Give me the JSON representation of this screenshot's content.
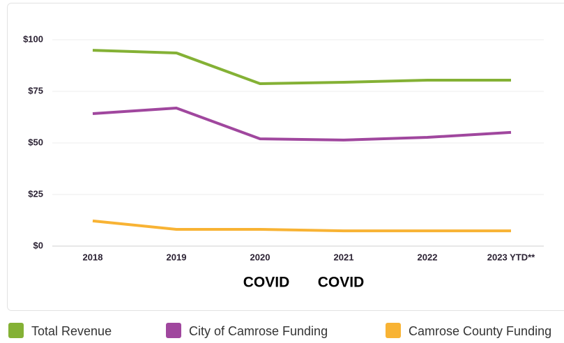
{
  "chart_data": {
    "type": "line",
    "categories": [
      "2018",
      "2019",
      "2020",
      "2021",
      "2022",
      "2023 YTD**"
    ],
    "series": [
      {
        "name": "Total Revenue",
        "color": "#84b135",
        "values": [
          94.9,
          93.6,
          78.7,
          79.4,
          80.4,
          80.4
        ]
      },
      {
        "name": "City of Camrose Funding",
        "color": "#a0479e",
        "values": [
          64.2,
          66.9,
          52.0,
          51.4,
          52.7,
          55.1
        ]
      },
      {
        "name": "Camrose County Funding",
        "color": "#f8b334",
        "values": [
          12.2,
          8.1,
          8.1,
          7.4,
          7.4,
          7.4
        ]
      }
    ],
    "ylim": [
      0,
      100
    ],
    "yticks": [
      {
        "value": 0,
        "label": "$0"
      },
      {
        "value": 25,
        "label": "$25"
      },
      {
        "value": 50,
        "label": "$50"
      },
      {
        "value": 75,
        "label": "$75"
      },
      {
        "value": 100,
        "label": "$100"
      }
    ],
    "grid": true,
    "annotations": [
      "COVID",
      "COVID"
    ]
  }
}
